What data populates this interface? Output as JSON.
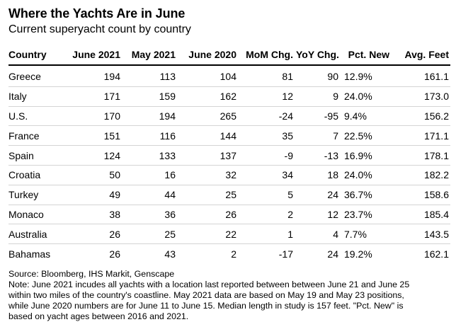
{
  "header": {
    "title": "Where the Yachts Are in June",
    "subtitle": "Current superyacht count by country"
  },
  "chart_data": {
    "type": "table",
    "title": "Where the Yachts Are in June",
    "subtitle": "Current superyacht count by country",
    "columns": [
      "Country",
      "June 2021",
      "May 2021",
      "June 2020",
      "MoM Chg.",
      "YoY Chg.",
      "Pct. New",
      "Avg. Feet"
    ],
    "rows": [
      [
        "Greece",
        "194",
        "113",
        "104",
        "81",
        "90",
        "12.9%",
        "161.1"
      ],
      [
        "Italy",
        "171",
        "159",
        "162",
        "12",
        "9",
        "24.0%",
        "173.0"
      ],
      [
        "U.S.",
        "170",
        "194",
        "265",
        "-24",
        "-95",
        "9.4%",
        "156.2"
      ],
      [
        "France",
        "151",
        "116",
        "144",
        "35",
        "7",
        "22.5%",
        "171.1"
      ],
      [
        "Spain",
        "124",
        "133",
        "137",
        "-9",
        "-13",
        "16.9%",
        "178.1"
      ],
      [
        "Croatia",
        "50",
        "16",
        "32",
        "34",
        "18",
        "24.0%",
        "182.2"
      ],
      [
        "Turkey",
        "49",
        "44",
        "25",
        "5",
        "24",
        "36.7%",
        "158.6"
      ],
      [
        "Monaco",
        "38",
        "36",
        "26",
        "2",
        "12",
        "23.7%",
        "185.4"
      ],
      [
        "Australia",
        "26",
        "25",
        "22",
        "1",
        "4",
        "7.7%",
        "143.5"
      ],
      [
        "Bahamas",
        "26",
        "43",
        "2",
        "-17",
        "24",
        "19.2%",
        "162.1"
      ]
    ]
  },
  "footer": {
    "source": "Source: Bloomberg, IHS Markit, Genscape",
    "note_lines": [
      "Note: June 2021 incudes all yachts with a location last reported between between June 21 and June 25",
      "within two miles of the country's coastline. May 2021 data are based on May 19 and May 23 positions,",
      "while June 2020 numbers are for June 11 to June 15. Median length in study is 157 feet. \"Pct. New\" is",
      "based on yacht ages between 2016 and 2021."
    ]
  }
}
